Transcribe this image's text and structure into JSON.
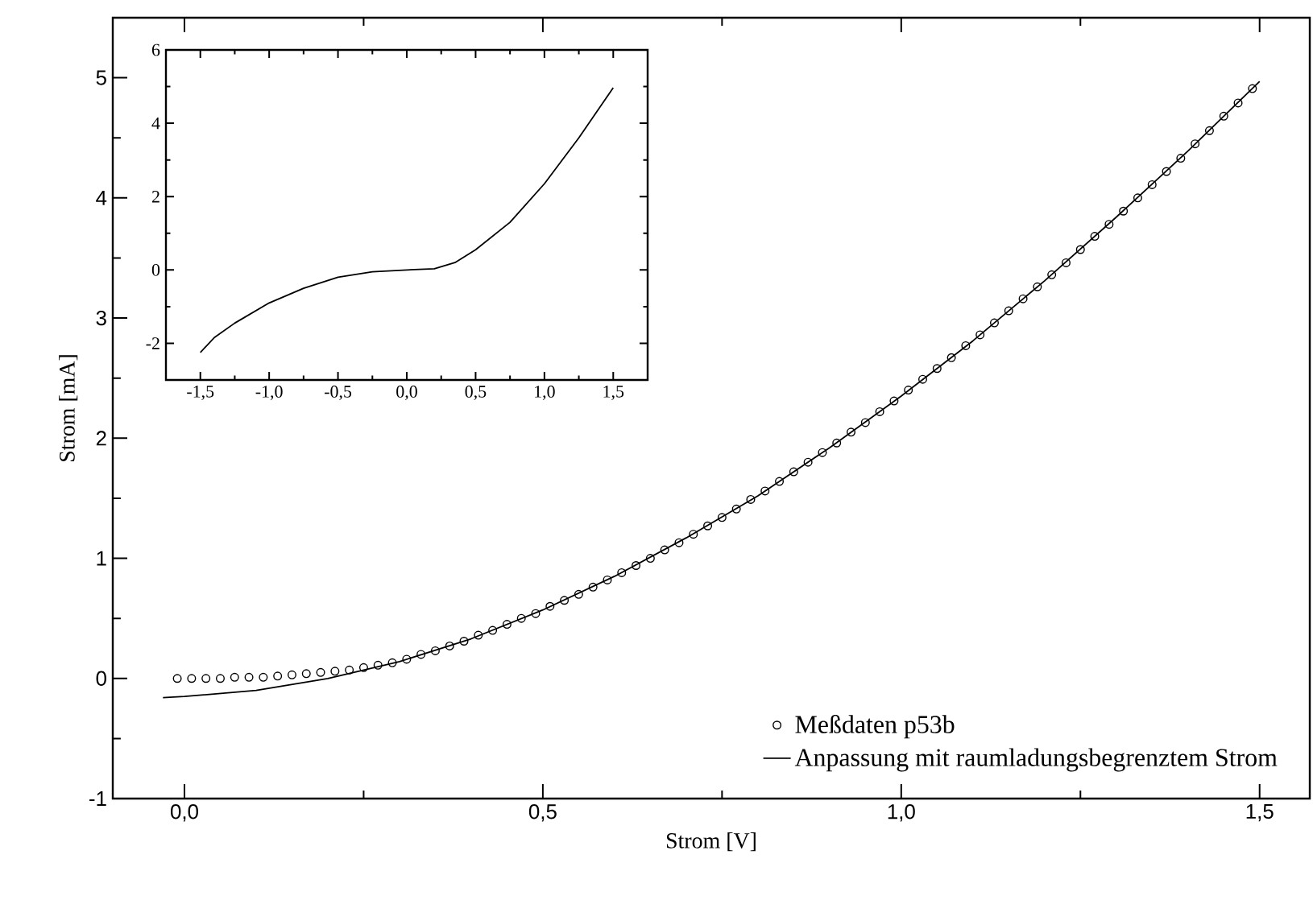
{
  "chart_data": [
    {
      "type": "scatter",
      "xlabel": "Strom [V]",
      "ylabel": "Strom [mA]",
      "xlim": [
        -0.1,
        1.57
      ],
      "ylim": [
        -1,
        5.5
      ],
      "xticks": [
        {
          "value": 0,
          "label": "0,0"
        },
        {
          "value": 0.5,
          "label": "0,5"
        },
        {
          "value": 1,
          "label": "1,0"
        },
        {
          "value": 1.5,
          "label": "1,5"
        }
      ],
      "yticks": [
        -1,
        0,
        1,
        2,
        3,
        4,
        5
      ],
      "legend": "bottom right",
      "series": [
        {
          "name": "Meßdaten p53b",
          "type": "scatter",
          "marker": "circle",
          "color": "#000000",
          "x": [
            -0.01,
            0.01,
            0.03,
            0.05,
            0.07,
            0.09,
            0.11,
            0.13,
            0.15,
            0.17,
            0.19,
            0.21,
            0.23,
            0.25,
            0.27,
            0.29,
            0.31,
            0.33,
            0.35,
            0.37,
            0.39,
            0.41,
            0.43,
            0.45,
            0.47,
            0.49,
            0.51,
            0.53,
            0.55,
            0.57,
            0.59,
            0.61,
            0.63,
            0.65,
            0.67,
            0.69,
            0.71,
            0.73,
            0.75,
            0.77,
            0.79,
            0.81,
            0.83,
            0.85,
            0.87,
            0.89,
            0.91,
            0.93,
            0.95,
            0.97,
            0.99,
            1.01,
            1.03,
            1.05,
            1.07,
            1.09,
            1.11,
            1.13,
            1.15,
            1.17,
            1.19,
            1.21,
            1.23,
            1.25,
            1.27,
            1.29,
            1.31,
            1.33,
            1.35,
            1.37,
            1.39,
            1.41,
            1.43,
            1.45,
            1.47,
            1.49
          ],
          "values": [
            0.0,
            0.0,
            0.0,
            0.0,
            0.01,
            0.01,
            0.01,
            0.02,
            0.03,
            0.04,
            0.05,
            0.06,
            0.07,
            0.09,
            0.11,
            0.13,
            0.16,
            0.2,
            0.23,
            0.27,
            0.31,
            0.36,
            0.4,
            0.45,
            0.5,
            0.54,
            0.6,
            0.65,
            0.7,
            0.76,
            0.82,
            0.88,
            0.94,
            1.0,
            1.07,
            1.13,
            1.2,
            1.27,
            1.34,
            1.41,
            1.49,
            1.56,
            1.64,
            1.72,
            1.8,
            1.88,
            1.96,
            2.05,
            2.13,
            2.22,
            2.31,
            2.4,
            2.49,
            2.58,
            2.67,
            2.77,
            2.86,
            2.96,
            3.06,
            3.16,
            3.26,
            3.36,
            3.46,
            3.57,
            3.68,
            3.78,
            3.89,
            4.0,
            4.11,
            4.22,
            4.33,
            4.45,
            4.56,
            4.68,
            4.79,
            4.91
          ]
        },
        {
          "name": "Anpassung mit raumladungsbegrenztem Strom",
          "type": "line",
          "marker": "none",
          "line_style": "solid",
          "color": "#000000",
          "x": [
            -0.03,
            0,
            0.1,
            0.2,
            0.3,
            0.4,
            0.5,
            0.6,
            0.7,
            0.8,
            0.9,
            1.0,
            1.1,
            1.2,
            1.3,
            1.4,
            1.5
          ],
          "values": [
            -0.16,
            -0.15,
            -0.1,
            0.0,
            0.14,
            0.33,
            0.57,
            0.85,
            1.17,
            1.52,
            1.92,
            2.35,
            2.81,
            3.31,
            3.84,
            4.39,
            4.97
          ]
        }
      ]
    },
    {
      "type": "line",
      "xlim": [
        -1.75,
        1.75
      ],
      "ylim": [
        -3,
        6
      ],
      "xticks": [
        {
          "value": -1.5,
          "label": "-1,5"
        },
        {
          "value": -1,
          "label": "-1,0"
        },
        {
          "value": -0.5,
          "label": "-0,5"
        },
        {
          "value": 0,
          "label": "0,0"
        },
        {
          "value": 0.5,
          "label": "0,5"
        },
        {
          "value": 1,
          "label": "1,0"
        },
        {
          "value": 1.5,
          "label": "1,5"
        }
      ],
      "yticks": [
        -2,
        0,
        2,
        4,
        6
      ],
      "series": [
        {
          "color": "#000000",
          "line_style": "solid",
          "x": [
            -1.5,
            -1.4,
            -1.25,
            -1.0,
            -0.75,
            -0.5,
            -0.25,
            0,
            0.2,
            0.35,
            0.5,
            0.75,
            1.0,
            1.25,
            1.5
          ],
          "values": [
            -2.25,
            -1.85,
            -1.45,
            -0.9,
            -0.5,
            -0.2,
            -0.05,
            0.0,
            0.03,
            0.2,
            0.55,
            1.3,
            2.35,
            3.6,
            4.97
          ]
        }
      ]
    }
  ]
}
